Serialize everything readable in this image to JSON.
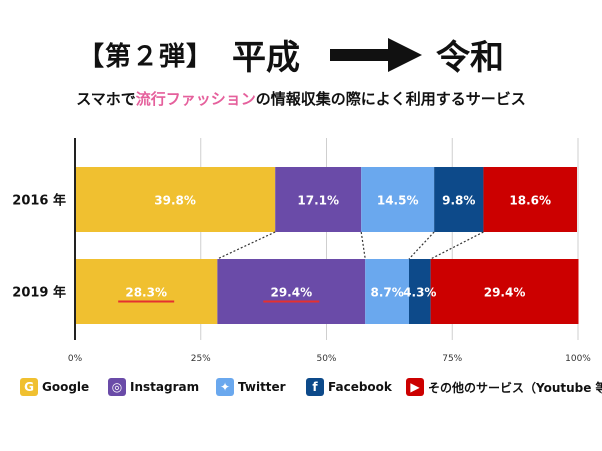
{
  "header": {
    "label": "【第２弾】",
    "from": "平成",
    "to": "令和"
  },
  "subtitle": {
    "pre": "スマホで",
    "highlight": "流行ファッション",
    "post": "の情報収集の際によく利用するサービス"
  },
  "colors": {
    "google": "#f0c030",
    "instagram": "#6a4ba8",
    "twitter": "#6aa8ee",
    "facebook": "#0d4a8a",
    "other": "#cc0000",
    "underline": "#e53030"
  },
  "chart_data": {
    "type": "bar",
    "orientation": "horizontal-stacked-100",
    "categories": [
      "2016 年",
      "2019 年"
    ],
    "series": [
      {
        "name": "Google",
        "values": [
          39.8,
          28.3
        ],
        "labels": [
          "39.8%",
          "28.3%"
        ]
      },
      {
        "name": "Instagram",
        "values": [
          17.1,
          29.4
        ],
        "labels": [
          "17.1%",
          "29.4%"
        ]
      },
      {
        "name": "Twitter",
        "values": [
          14.5,
          8.7
        ],
        "labels": [
          "14.5%",
          "8.7%"
        ]
      },
      {
        "name": "Facebook",
        "values": [
          9.8,
          4.3
        ],
        "labels": [
          "9.8%",
          "4.3%"
        ]
      },
      {
        "name": "その他のサービス（Youtube 等）",
        "values": [
          18.6,
          29.4
        ],
        "labels": [
          "18.6%",
          "29.4%"
        ]
      }
    ],
    "underlined": [
      [
        "2019 年",
        "Google"
      ],
      [
        "2019 年",
        "Instagram"
      ]
    ],
    "xlim": [
      0,
      100
    ],
    "xticks": [
      "0%",
      "25%",
      "50%",
      "75%",
      "100%"
    ],
    "grid": true,
    "legend_position": "bottom"
  },
  "legend": [
    {
      "label": "Google",
      "icon": "google-icon",
      "glyph": "G",
      "color": "#f0c030"
    },
    {
      "label": "Instagram",
      "icon": "instagram-icon",
      "glyph": "◎",
      "color": "#6a4ba8"
    },
    {
      "label": "Twitter",
      "icon": "twitter-icon",
      "glyph": "✦",
      "color": "#6aa8ee"
    },
    {
      "label": "Facebook",
      "icon": "facebook-icon",
      "glyph": "f",
      "color": "#0d4a8a"
    },
    {
      "label": "その他のサービス（Youtube 等）",
      "icon": "youtube-icon",
      "glyph": "▶",
      "color": "#cc0000"
    }
  ]
}
